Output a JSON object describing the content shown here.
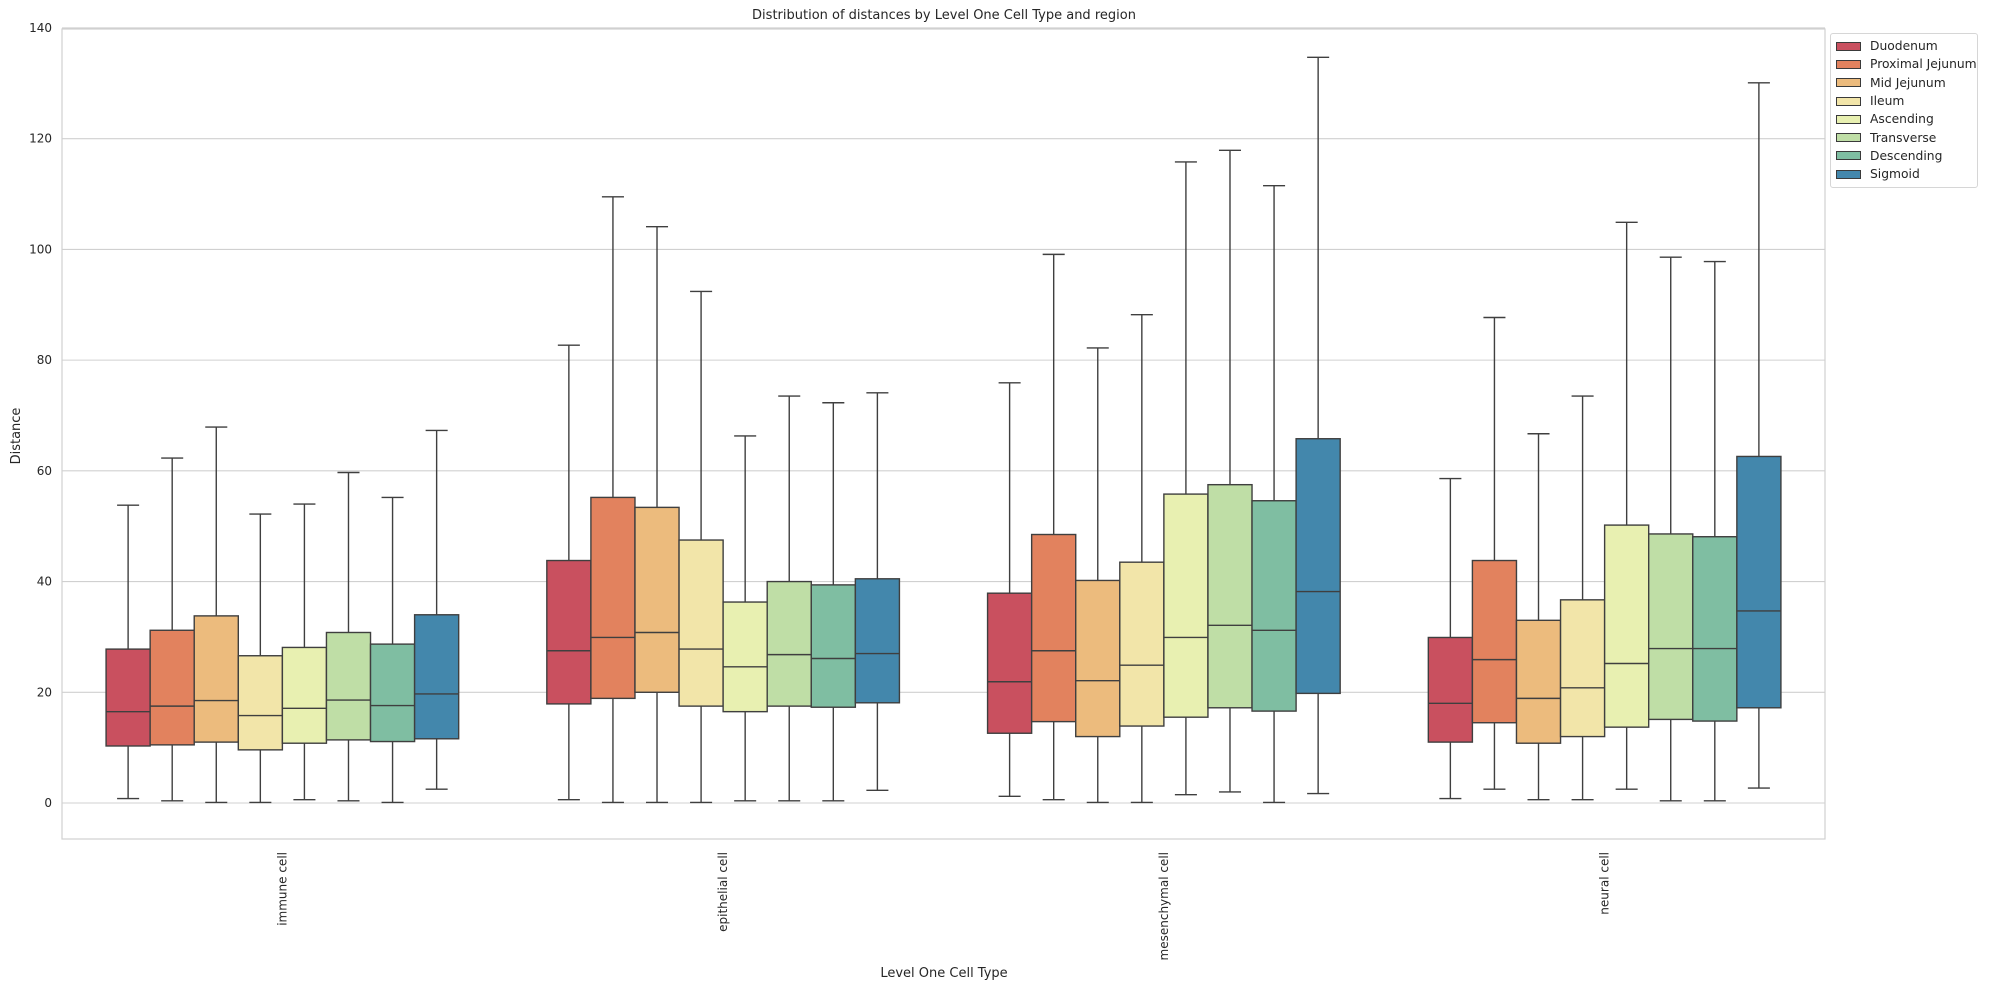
{
  "chart_data": {
    "type": "box",
    "title": "Distribution of distances by Level One Cell Type and region",
    "xlabel": "Level One Cell Type",
    "ylabel": "Distance",
    "ylim": [
      -7,
      142
    ],
    "yticks": [
      0,
      20,
      40,
      60,
      80,
      100,
      120,
      140
    ],
    "grid": true,
    "legend_position": "top-right, outside plot",
    "categories": [
      "immune cell",
      "epithelial cell",
      "mesenchymal cell",
      "neural cell"
    ],
    "series": [
      {
        "name": "Duodenum",
        "color": "#c9505f",
        "boxes": [
          {
            "whislo": 0.8,
            "q1": 10.3,
            "med": 16.5,
            "q3": 27.8,
            "whishi": 53.8
          },
          {
            "whislo": 0.6,
            "q1": 17.9,
            "med": 27.5,
            "q3": 43.8,
            "whishi": 82.7
          },
          {
            "whislo": 1.2,
            "q1": 12.6,
            "med": 21.9,
            "q3": 37.9,
            "whishi": 75.9
          },
          {
            "whislo": 0.8,
            "q1": 11.0,
            "med": 18.0,
            "q3": 29.9,
            "whishi": 58.6
          }
        ]
      },
      {
        "name": "Proximal Jejunum",
        "color": "#e2825e",
        "boxes": [
          {
            "whislo": 0.4,
            "q1": 10.5,
            "med": 17.5,
            "q3": 31.2,
            "whishi": 62.3
          },
          {
            "whislo": 0.1,
            "q1": 18.9,
            "med": 29.9,
            "q3": 55.2,
            "whishi": 109.5
          },
          {
            "whislo": 0.6,
            "q1": 14.7,
            "med": 27.5,
            "q3": 48.5,
            "whishi": 99.1
          },
          {
            "whislo": 2.5,
            "q1": 14.5,
            "med": 25.9,
            "q3": 43.8,
            "whishi": 87.7
          }
        ]
      },
      {
        "name": "Mid Jejunum",
        "color": "#ecbb7d",
        "boxes": [
          {
            "whislo": 0.1,
            "q1": 11.0,
            "med": 18.5,
            "q3": 33.8,
            "whishi": 67.9
          },
          {
            "whislo": 0.1,
            "q1": 20.0,
            "med": 30.8,
            "q3": 53.4,
            "whishi": 104.1
          },
          {
            "whislo": 0.1,
            "q1": 12.0,
            "med": 22.1,
            "q3": 40.2,
            "whishi": 82.2
          },
          {
            "whislo": 0.6,
            "q1": 10.8,
            "med": 18.9,
            "q3": 33.0,
            "whishi": 66.7
          }
        ]
      },
      {
        "name": "Ileum",
        "color": "#f2e5a9",
        "boxes": [
          {
            "whislo": 0.1,
            "q1": 9.6,
            "med": 15.8,
            "q3": 26.6,
            "whishi": 52.2
          },
          {
            "whislo": 0.1,
            "q1": 17.5,
            "med": 27.8,
            "q3": 47.5,
            "whishi": 92.4
          },
          {
            "whislo": 0.1,
            "q1": 13.9,
            "med": 24.9,
            "q3": 43.5,
            "whishi": 88.2
          },
          {
            "whislo": 0.6,
            "q1": 12.0,
            "med": 20.8,
            "q3": 36.7,
            "whishi": 73.5
          }
        ]
      },
      {
        "name": "Ascending",
        "color": "#e8f0b1",
        "boxes": [
          {
            "whislo": 0.6,
            "q1": 10.8,
            "med": 17.1,
            "q3": 28.1,
            "whishi": 54.0
          },
          {
            "whislo": 0.4,
            "q1": 16.5,
            "med": 24.6,
            "q3": 36.3,
            "whishi": 66.3
          },
          {
            "whislo": 1.5,
            "q1": 15.5,
            "med": 29.9,
            "q3": 55.8,
            "whishi": 115.8
          },
          {
            "whislo": 2.5,
            "q1": 13.7,
            "med": 25.2,
            "q3": 50.2,
            "whishi": 104.9
          }
        ]
      },
      {
        "name": "Transverse",
        "color": "#bfdea6",
        "boxes": [
          {
            "whislo": 0.4,
            "q1": 11.4,
            "med": 18.6,
            "q3": 30.8,
            "whishi": 59.7
          },
          {
            "whislo": 0.4,
            "q1": 17.5,
            "med": 26.8,
            "q3": 40.0,
            "whishi": 73.5
          },
          {
            "whislo": 2.0,
            "q1": 17.2,
            "med": 32.1,
            "q3": 57.5,
            "whishi": 117.9
          },
          {
            "whislo": 0.4,
            "q1": 15.1,
            "med": 27.9,
            "q3": 48.6,
            "whishi": 98.6
          }
        ]
      },
      {
        "name": "Descending",
        "color": "#7fbea2",
        "boxes": [
          {
            "whislo": 0.1,
            "q1": 11.1,
            "med": 17.6,
            "q3": 28.7,
            "whishi": 55.2
          },
          {
            "whislo": 0.4,
            "q1": 17.3,
            "med": 26.1,
            "q3": 39.4,
            "whishi": 72.3
          },
          {
            "whislo": 0.1,
            "q1": 16.6,
            "med": 31.2,
            "q3": 54.6,
            "whishi": 111.5
          },
          {
            "whislo": 0.4,
            "q1": 14.8,
            "med": 27.9,
            "q3": 48.1,
            "whishi": 97.8
          }
        ]
      },
      {
        "name": "Sigmoid",
        "color": "#4387ac",
        "boxes": [
          {
            "whislo": 2.5,
            "q1": 11.6,
            "med": 19.7,
            "q3": 34.0,
            "whishi": 67.3
          },
          {
            "whislo": 2.3,
            "q1": 18.1,
            "med": 27.0,
            "q3": 40.5,
            "whishi": 74.1
          },
          {
            "whislo": 1.7,
            "q1": 19.8,
            "med": 38.2,
            "q3": 65.8,
            "whishi": 134.7
          },
          {
            "whislo": 2.7,
            "q1": 17.2,
            "med": 34.7,
            "q3": 62.6,
            "whishi": 130.1
          }
        ]
      }
    ]
  }
}
